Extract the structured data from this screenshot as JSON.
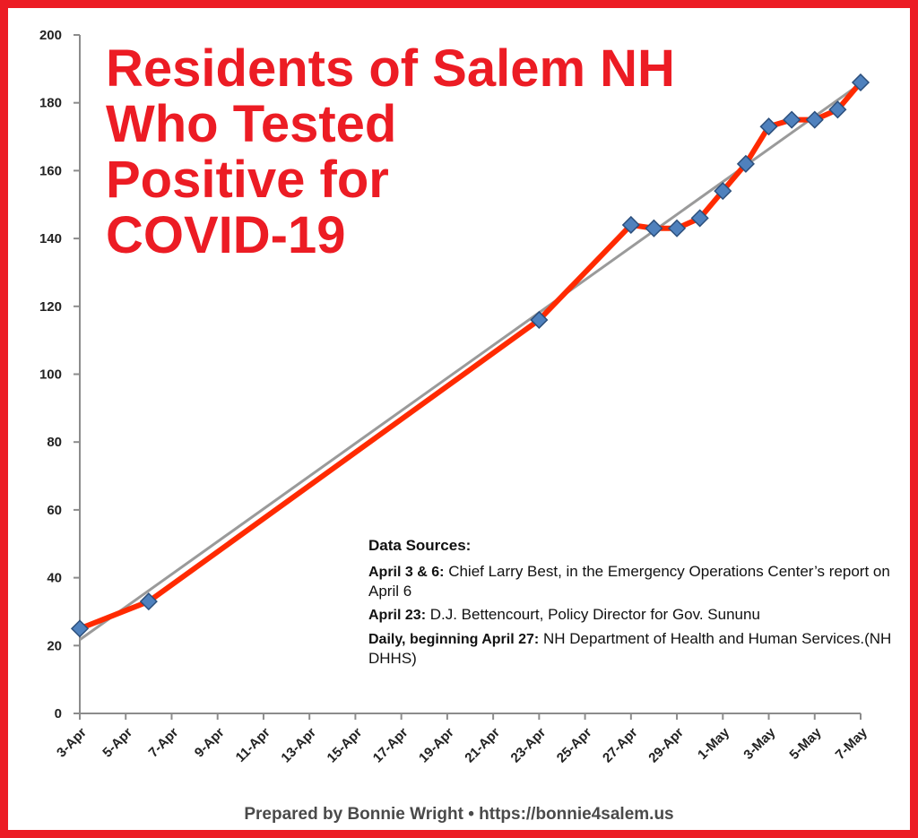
{
  "title_lines": [
    "Residents of Salem NH",
    "Who Tested",
    "Positive for",
    "COVID-19"
  ],
  "data_sources": {
    "heading": "Data Sources:",
    "entries": [
      {
        "label": "April 3 & 6:",
        "text": " Chief Larry Best, in the Emergency Operations Center’s report on April 6"
      },
      {
        "label": "April 23:",
        "text": " D.J. Bettencourt, Policy Director for Gov. Sununu"
      },
      {
        "label": "Daily, beginning April 27:",
        "text": " NH Department of Health and Human Services.(NH DHHS)"
      }
    ]
  },
  "footer": "Prepared by Bonnie Wright • https://bonnie4salem.us",
  "colors": {
    "frame": "#ec1c24",
    "title": "#ec1c24",
    "line": "#ff2a00",
    "marker": "#4f81bd",
    "trendline": "#9a9a9a"
  },
  "chart_data": {
    "type": "line",
    "title": "Residents of Salem NH Who Tested Positive for COVID-19",
    "xlabel": "",
    "ylabel": "",
    "x_tick_labels": [
      "3-Apr",
      "5-Apr",
      "7-Apr",
      "9-Apr",
      "11-Apr",
      "13-Apr",
      "15-Apr",
      "17-Apr",
      "19-Apr",
      "21-Apr",
      "23-Apr",
      "25-Apr",
      "27-Apr",
      "29-Apr",
      "1-May",
      "3-May",
      "5-May",
      "7-May"
    ],
    "ylim": [
      0,
      200
    ],
    "yticks": [
      0,
      20,
      40,
      60,
      80,
      100,
      120,
      140,
      160,
      180,
      200
    ],
    "grid": false,
    "series": [
      {
        "x": [
          "3-Apr",
          "6-Apr",
          "23-Apr",
          "27-Apr",
          "28-Apr",
          "29-Apr",
          "30-Apr",
          "1-May",
          "2-May",
          "3-May",
          "4-May",
          "5-May",
          "6-May",
          "7-May"
        ],
        "y": [
          25,
          33,
          116,
          144,
          143,
          143,
          146,
          154,
          162,
          173,
          175,
          175,
          178,
          186
        ]
      }
    ],
    "trendline": {
      "type": "linear"
    }
  }
}
